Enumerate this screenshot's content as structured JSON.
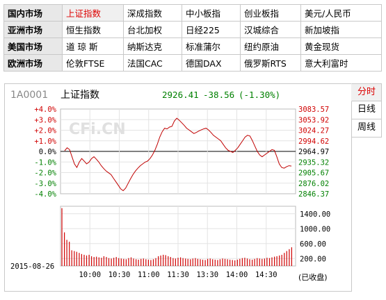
{
  "markets": [
    {
      "region": "国内市场",
      "items": [
        "上证指数",
        "深成指数",
        "中小板指",
        "创业板指",
        "美元/人民币"
      ],
      "active": 0
    },
    {
      "region": "亚洲市场",
      "items": [
        "恒生指数",
        "台北加权",
        "日经225",
        "汉城综合",
        "新加坡指"
      ]
    },
    {
      "region": "美国市场",
      "items": [
        "道 琼 斯",
        "纳斯达克",
        "标准蒲尔",
        "纽约原油",
        "黄金现货"
      ]
    },
    {
      "region": "欧洲市场",
      "items": [
        "伦敦FTSE",
        "法国CAC",
        "德国DAX",
        "俄罗斯RTS",
        "意大利富时"
      ]
    }
  ],
  "side_tabs": [
    "分时",
    "日线",
    "周线"
  ],
  "side_tab_active": 0,
  "header": {
    "code": "1A0001",
    "name": "上证指数",
    "price": "2926.41",
    "change": "-38.56",
    "change_pct": "(-1.30%)"
  },
  "watermark": "CFi.CN",
  "date_label": "2015-08-26",
  "volume_note": "(已收盘)",
  "colors": {
    "up": "#d00000",
    "down": "#008000",
    "line": "#c00000",
    "volume": "#d00000",
    "grid": "#cccccc"
  },
  "chart_data": {
    "type": "line",
    "base": 2964.97,
    "price_ticks": [
      "3083.57",
      "3053.92",
      "3024.27",
      "2994.62",
      "2964.97",
      "2935.32",
      "2905.67",
      "2876.02",
      "2846.37"
    ],
    "pct_ticks": [
      "+4.0%",
      "+3.0%",
      "+2.0%",
      "+1.0%",
      "0.0%",
      "-1.0%",
      "-2.0%",
      "-3.0%",
      "-4.0%"
    ],
    "x_ticks": [
      "10:00",
      "10:30",
      "11:00",
      "11:30",
      "13:30",
      "14:00",
      "14:30"
    ],
    "ylim": [
      2846.37,
      3083.57
    ],
    "price": [
      2967,
      2975,
      2970,
      2950,
      2930,
      2920,
      2935,
      2945,
      2938,
      2930,
      2935,
      2945,
      2950,
      2943,
      2935,
      2925,
      2917,
      2910,
      2905,
      2900,
      2890,
      2880,
      2870,
      2860,
      2855,
      2862,
      2875,
      2888,
      2900,
      2910,
      2918,
      2925,
      2930,
      2935,
      2938,
      2945,
      2955,
      2968,
      2985,
      3005,
      3020,
      3030,
      3028,
      3033,
      3035,
      3050,
      3058,
      3052,
      3045,
      3038,
      3030,
      3025,
      3020,
      3015,
      3018,
      3022,
      3025,
      3028,
      3030,
      3025,
      3018,
      3010,
      3005,
      3000,
      2995,
      2985,
      2975,
      2968,
      2965,
      2962,
      2968,
      2975,
      2985,
      2995,
      3005,
      3010,
      3008,
      2995,
      2980,
      2965,
      2955,
      2950,
      2955,
      2960,
      2965,
      2970,
      2968,
      2950,
      2930,
      2920,
      2918,
      2922,
      2925,
      2924
    ],
    "volume_ticks": [
      "1400.00",
      "1000.00",
      "600.00",
      "200.00"
    ],
    "volume_ylim": [
      0,
      1600
    ],
    "volume": [
      1550,
      900,
      700,
      650,
      420,
      400,
      380,
      350,
      320,
      300,
      280,
      300,
      260,
      240,
      250,
      230,
      220,
      260,
      240,
      210,
      200,
      220,
      240,
      210,
      200,
      190,
      180,
      210,
      230,
      200,
      180,
      170,
      190,
      200,
      180,
      170,
      160,
      180,
      210,
      260,
      280,
      300,
      290,
      260,
      240,
      210,
      200,
      220,
      230,
      210,
      200,
      190,
      180,
      200,
      210,
      190,
      180,
      170,
      160,
      190,
      200,
      180,
      170,
      160,
      180,
      200,
      190,
      180,
      170,
      160,
      150,
      170,
      190,
      210,
      220,
      200,
      180,
      170,
      190,
      210,
      200,
      190,
      200,
      220,
      210,
      230,
      250,
      260,
      280,
      300,
      350,
      400,
      450,
      500
    ]
  }
}
